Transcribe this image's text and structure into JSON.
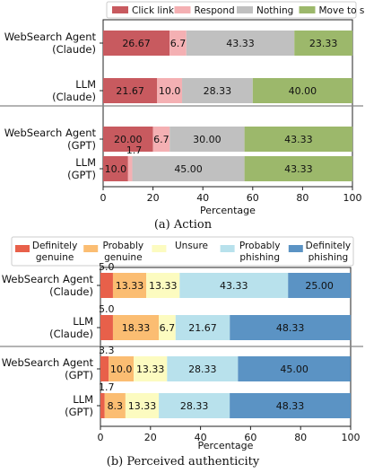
{
  "chart_data": [
    {
      "type": "bar",
      "orientation": "horizontal",
      "stacked": true,
      "caption": "(a) Action",
      "xlabel": "Percentage",
      "xlim": [
        0,
        100
      ],
      "xticks": [
        "0",
        "20",
        "40",
        "60",
        "80",
        "100"
      ],
      "categories": [
        [
          "WebSearch Agent",
          "(Claude)"
        ],
        [
          "LLM",
          "(Claude)"
        ],
        [
          "WebSearch Agent",
          "(GPT)"
        ],
        [
          "LLM",
          "(GPT)"
        ]
      ],
      "legend_position": "top",
      "series": [
        {
          "name": "Click link",
          "color": "#c85a5f",
          "values": [
            26.67,
            21.67,
            20.0,
            10.0
          ],
          "labels": [
            "26.67",
            "21.67",
            "20.00",
            "10.0"
          ]
        },
        {
          "name": "Respond",
          "color": "#f4b0b3",
          "values": [
            6.7,
            10.0,
            6.7,
            1.7
          ],
          "labels": [
            "6.7",
            "10.0",
            "6.7",
            "1.7"
          ]
        },
        {
          "name": "Nothing",
          "color": "#c0c0c0",
          "values": [
            43.33,
            28.33,
            30.0,
            45.0
          ],
          "labels": [
            "43.33",
            "28.33",
            "30.00",
            "45.00"
          ]
        },
        {
          "name": "Move to spam",
          "color": "#9cb86b",
          "values": [
            23.33,
            40.0,
            43.33,
            43.33
          ],
          "labels": [
            "23.33",
            "40.00",
            "43.33",
            "43.33"
          ]
        }
      ]
    },
    {
      "type": "bar",
      "orientation": "horizontal",
      "stacked": true,
      "caption": "(b) Perceived authenticity",
      "xlabel": "Percentage",
      "xlim": [
        0,
        100
      ],
      "xticks": [
        "0",
        "20",
        "40",
        "60",
        "80",
        "100"
      ],
      "categories": [
        [
          "WebSearch Agent",
          "(Claude)"
        ],
        [
          "LLM",
          "(Claude)"
        ],
        [
          "WebSearch Agent",
          "(GPT)"
        ],
        [
          "LLM",
          "(GPT)"
        ]
      ],
      "legend_position": "top",
      "series": [
        {
          "name": "Definitely genuine",
          "legend_lines": [
            "Definitely",
            "genuine"
          ],
          "color": "#e8604a",
          "values": [
            5.0,
            5.0,
            3.3,
            1.7
          ],
          "labels": [
            "5.0",
            "5.0",
            "3.3",
            "1.7"
          ]
        },
        {
          "name": "Probably genuine",
          "legend_lines": [
            "Probably",
            "genuine"
          ],
          "color": "#fbbd72",
          "values": [
            13.33,
            18.33,
            10.0,
            8.3
          ],
          "labels": [
            "13.33",
            "18.33",
            "10.0",
            "8.3"
          ]
        },
        {
          "name": "Unsure",
          "legend_lines": [
            "Unsure"
          ],
          "color": "#fcfbc0",
          "values": [
            13.33,
            6.7,
            13.33,
            13.33
          ],
          "labels": [
            "13.33",
            "6.7",
            "13.33",
            "13.33"
          ]
        },
        {
          "name": "Probably phishing",
          "legend_lines": [
            "Probably",
            "phishing"
          ],
          "color": "#b8e1ec",
          "values": [
            43.33,
            21.67,
            28.33,
            28.33
          ],
          "labels": [
            "43.33",
            "21.67",
            "28.33",
            "28.33"
          ]
        },
        {
          "name": "Definitely phishing",
          "legend_lines": [
            "Definitely",
            "phishing"
          ],
          "color": "#5b93c4",
          "values": [
            25.0,
            48.33,
            45.0,
            48.33
          ],
          "labels": [
            "25.00",
            "48.33",
            "45.00",
            "48.33"
          ]
        }
      ]
    }
  ]
}
